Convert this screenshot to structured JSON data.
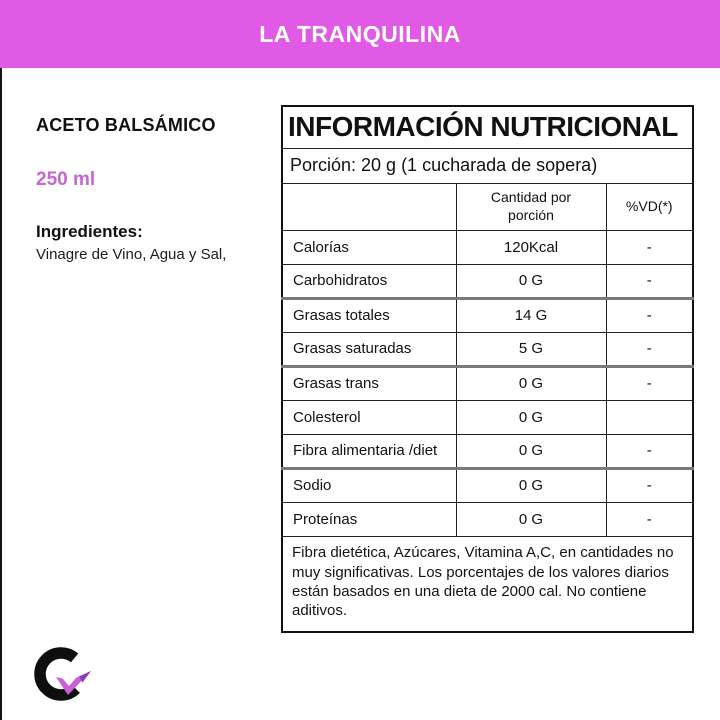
{
  "banner": {
    "title": "LA TRANQUILINA"
  },
  "colors": {
    "banner_bg": "#E15AE6",
    "banner_text": "#FFFFFF",
    "volume_text": "#C766CF",
    "logo_check": "#C95FD6",
    "logo_check_dark": "#8C3FA8",
    "logo_letter": "#0E0E0E"
  },
  "product": {
    "name": "ACETO BALSÁMICO",
    "volume": "250 ml",
    "ingredients_label": "Ingredientes:",
    "ingredients": "Vinagre de Vino, Agua y Sal,"
  },
  "nutrition_table": {
    "title": "INFORMACIÓN NUTRICIONAL",
    "portion": "Porción: 20 g (1 cucharada de sopera)",
    "columns": [
      "",
      "Cantidad por porción",
      "%VD(*)"
    ],
    "rows": [
      {
        "label": "Calorías",
        "amount": "120Kcal",
        "vd": "-"
      },
      {
        "label": "Carbohidratos",
        "amount": "0 G",
        "vd": "-",
        "divider_after": "thick"
      },
      {
        "label": "Grasas totales",
        "amount": "14 G",
        "vd": "-"
      },
      {
        "label": "Grasas saturadas",
        "amount": "5 G",
        "vd": "-",
        "divider_after": "thick"
      },
      {
        "label": "Grasas trans",
        "amount": "0 G",
        "vd": "-"
      },
      {
        "label": "Colesterol",
        "amount": "0 G",
        "vd": ""
      },
      {
        "label": "Fibra alimentaria /diet",
        "amount": "0 G",
        "vd": "-",
        "divider_after": "thick"
      },
      {
        "label": "Sodio",
        "amount": "0 G",
        "vd": "-"
      },
      {
        "label": "Proteínas",
        "amount": "0 G",
        "vd": "-"
      }
    ],
    "footnote": "Fibra dietética, Azúcares, Vitamina A,C, en cantidades no muy significativas. Los porcentajes de los valores diarios están basados en una dieta de 2000 cal. No contiene aditivos."
  }
}
